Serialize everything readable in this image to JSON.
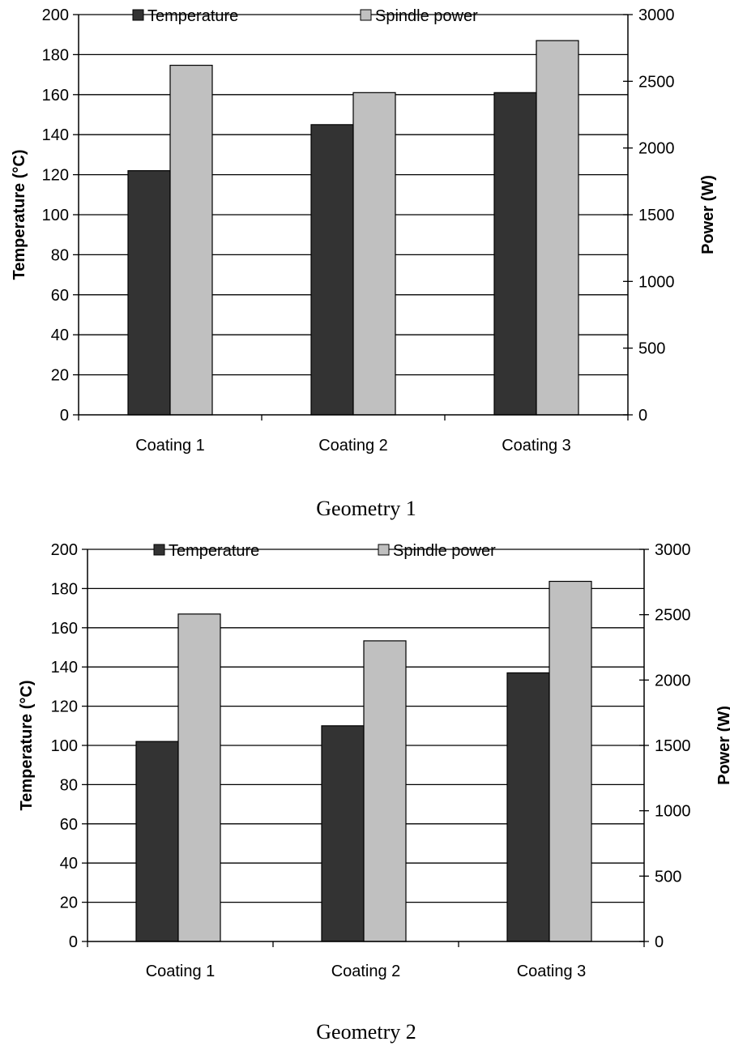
{
  "chart_data": [
    {
      "type": "bar",
      "caption": "Geometry 1",
      "categories": [
        "Coating 1",
        "Coating 2",
        "Coating 3"
      ],
      "series": [
        {
          "name": "Temperature",
          "axis": "left",
          "values": [
            122,
            145,
            161
          ]
        },
        {
          "name": "Spindle power",
          "axis": "right",
          "values": [
            2620,
            2415,
            2805
          ]
        }
      ],
      "ylabel": "Temperature (°C)",
      "y2label": "Power (W)",
      "ylim": [
        0,
        200
      ],
      "y2lim": [
        0,
        3000
      ],
      "yticks": [
        "0",
        "20",
        "40",
        "60",
        "80",
        "100",
        "120",
        "140",
        "160",
        "180",
        "200"
      ],
      "y2ticks": [
        "0",
        "500",
        "1000",
        "1500",
        "2000",
        "2500",
        "3000"
      ],
      "grid": true,
      "legend": "top"
    },
    {
      "type": "bar",
      "caption": "Geometry 2",
      "categories": [
        "Coating 1",
        "Coating 2",
        "Coating 3"
      ],
      "series": [
        {
          "name": "Temperature",
          "axis": "left",
          "values": [
            102,
            110,
            137
          ]
        },
        {
          "name": "Spindle power",
          "axis": "right",
          "values": [
            2505,
            2300,
            2755
          ]
        }
      ],
      "ylabel": "Temperature (°C)",
      "y2label": "Power (W)",
      "ylim": [
        0,
        200
      ],
      "y2lim": [
        0,
        3000
      ],
      "yticks": [
        "0",
        "20",
        "40",
        "60",
        "80",
        "100",
        "120",
        "140",
        "160",
        "180",
        "200"
      ],
      "y2ticks": [
        "0",
        "500",
        "1000",
        "1500",
        "2000",
        "2500",
        "3000"
      ],
      "grid": true,
      "legend": "top"
    }
  ],
  "colors": {
    "temperature": "#333333",
    "spindle_power": "#c0c0c0",
    "axis": "#000000",
    "background": "#ffffff"
  }
}
